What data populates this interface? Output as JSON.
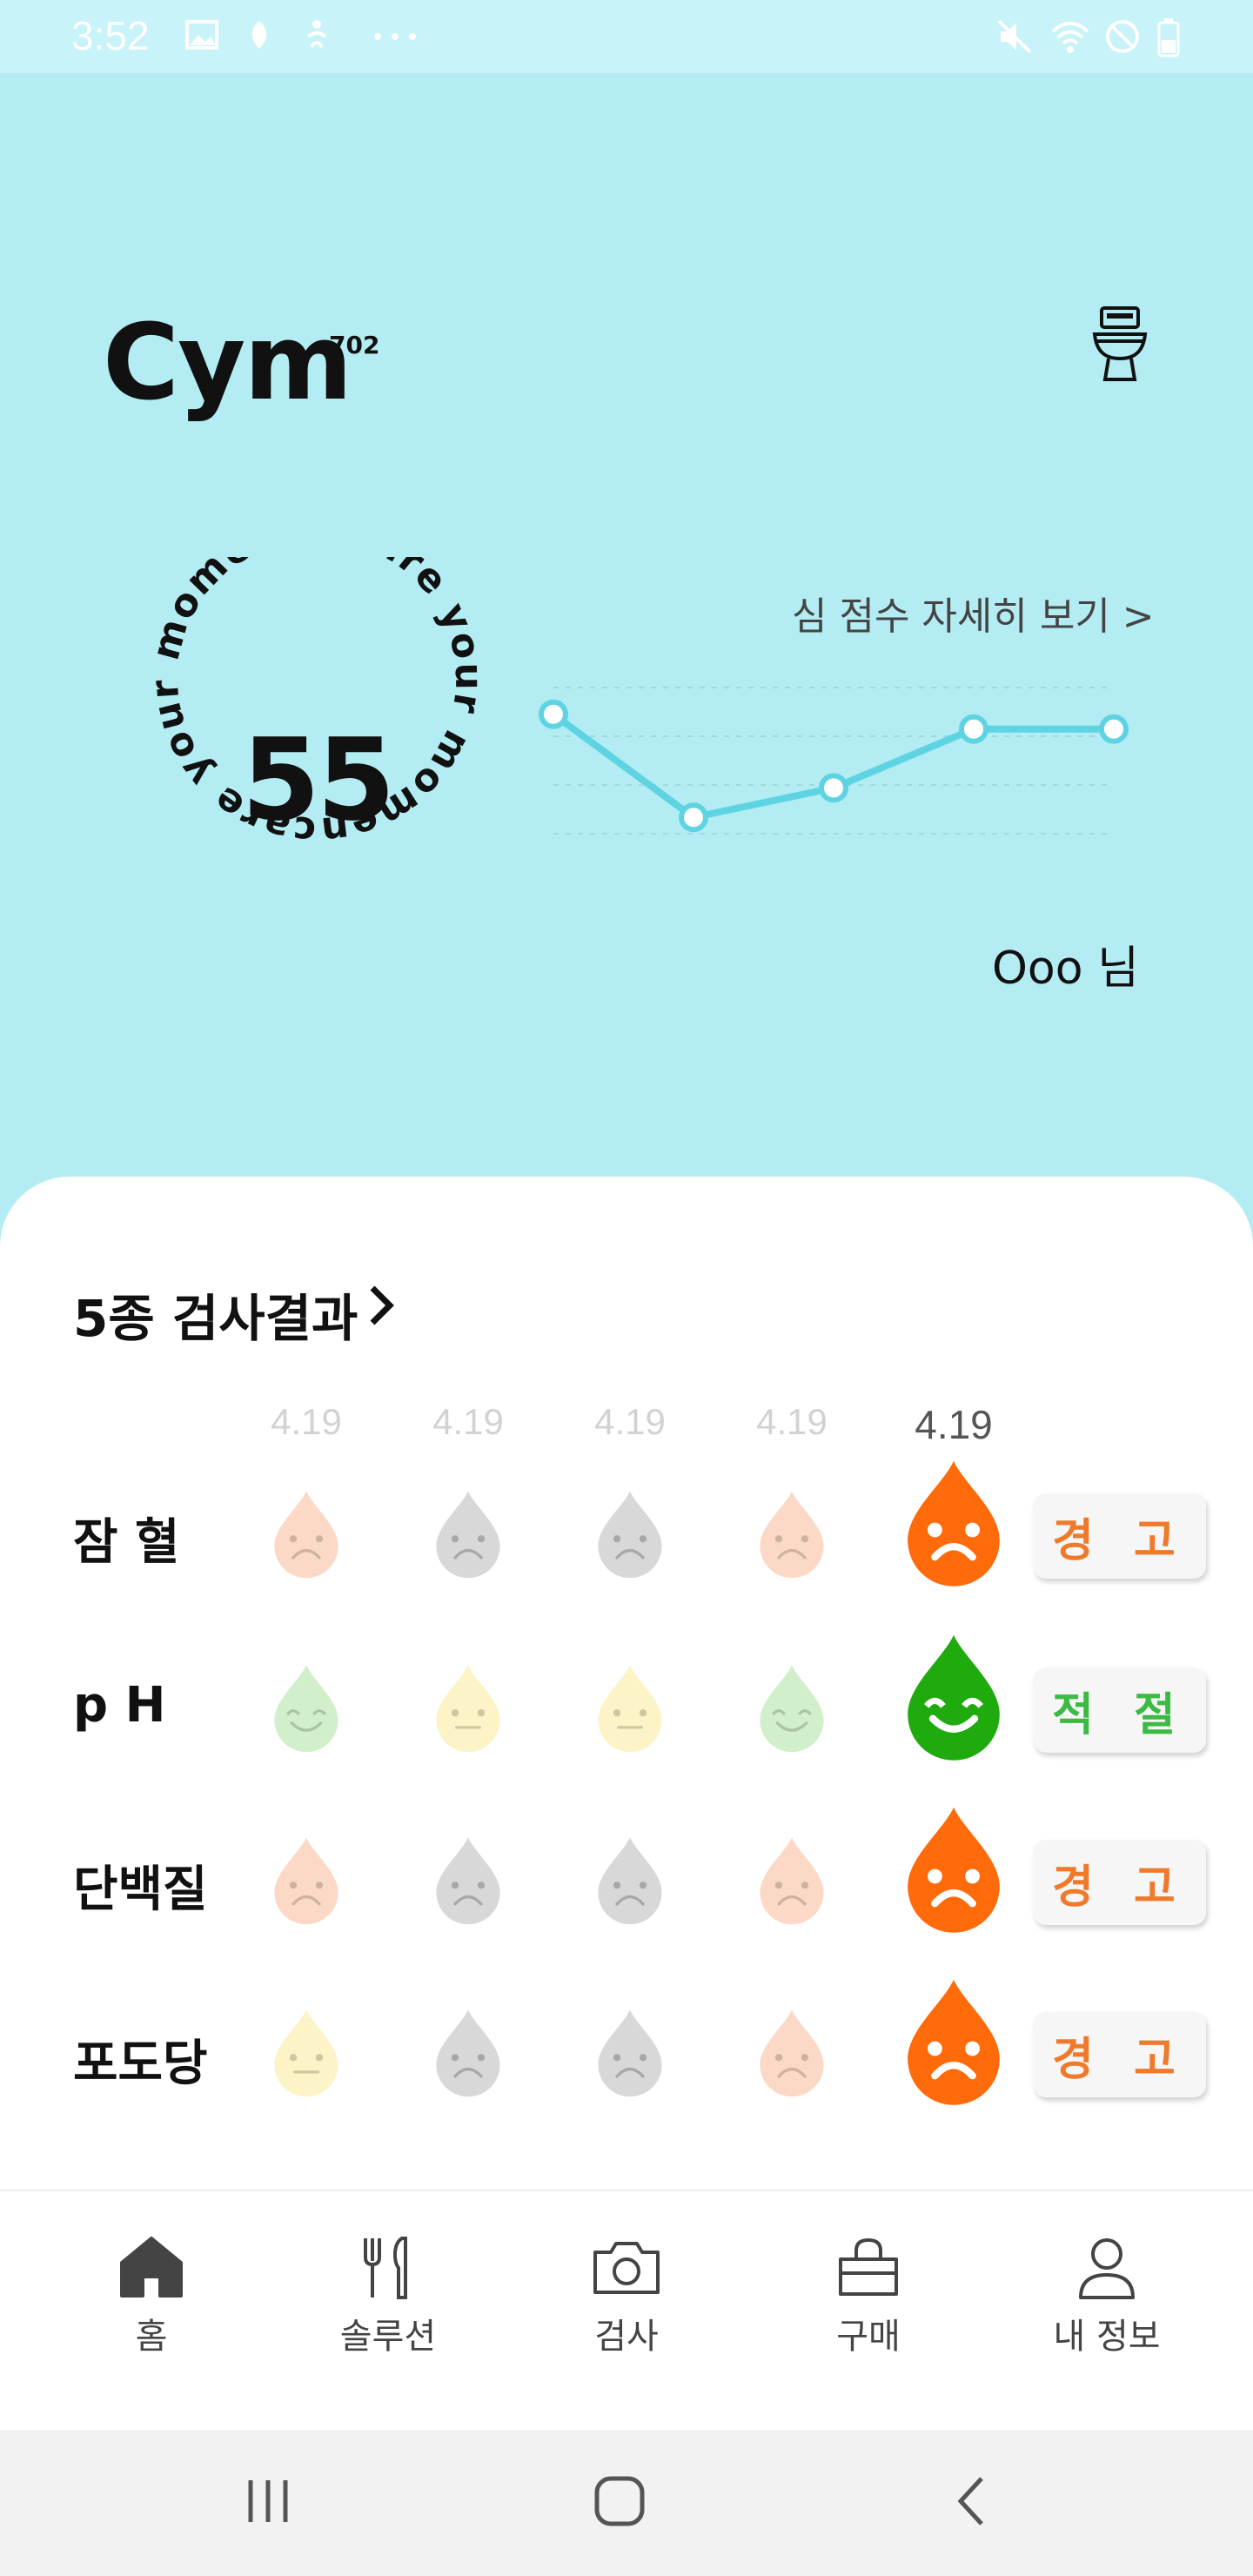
{
  "status_bar": {
    "time": "3:52",
    "left_icons": [
      "image-icon",
      "notification-icon",
      "accessibility-icon",
      "more-icon"
    ],
    "right_icons": [
      "mute-icon",
      "wifi-icon",
      "block-icon",
      "battery-icon"
    ]
  },
  "header": {
    "logo": "Cym",
    "logo_sup": "702",
    "toilet_icon": "toilet-icon"
  },
  "score": {
    "value": "55",
    "ring_text": "care your moment · care your moment",
    "detail_link": "심 점수 자세히 보기 >",
    "user_name": "Ooo 님"
  },
  "chart_data": {
    "type": "line",
    "series": [
      {
        "values": [
          55,
          48,
          50,
          54,
          54
        ]
      }
    ],
    "grid": true
  },
  "results": {
    "title": "5종 검사결과",
    "dates": [
      "4.19",
      "4.19",
      "4.19",
      "4.19",
      "4.19"
    ],
    "rows": [
      {
        "label": "잠  혈",
        "status": "경 고",
        "moods": [
          "sad",
          "sad",
          "sad",
          "sad",
          "sad"
        ],
        "colors": [
          "orange",
          "gray",
          "gray",
          "orange",
          "orange"
        ]
      },
      {
        "label": "p   H",
        "status": "적 절",
        "moods": [
          "happy",
          "neutral",
          "neutral",
          "happy",
          "happy"
        ],
        "colors": [
          "green",
          "yellow",
          "yellow",
          "green",
          "green"
        ]
      },
      {
        "label": "단백질",
        "status": "경 고",
        "moods": [
          "sad",
          "sad",
          "sad",
          "sad",
          "sad"
        ],
        "colors": [
          "orange",
          "gray",
          "gray",
          "orange",
          "orange"
        ]
      },
      {
        "label": "포도당",
        "status": "경 고",
        "moods": [
          "neutral",
          "sad",
          "sad",
          "sad",
          "sad"
        ],
        "colors": [
          "yellow",
          "gray",
          "gray",
          "orange",
          "orange"
        ]
      }
    ]
  },
  "nav": {
    "items": [
      {
        "label": "홈",
        "icon": "home-icon"
      },
      {
        "label": "솔루션",
        "icon": "utensils-icon"
      },
      {
        "label": "검사",
        "icon": "camera-icon"
      },
      {
        "label": "구매",
        "icon": "shopping-bag-icon"
      },
      {
        "label": "내 정보",
        "icon": "user-icon"
      }
    ]
  },
  "colors": {
    "hero_bg": "#b3ecf3",
    "status_bg": "#c8f3f8",
    "chart_line": "#5ed4e2",
    "warn": "#f07a2c",
    "ok": "#3bbb43",
    "drop_orange": "#ff6a0a",
    "drop_green": "#1fab0e"
  }
}
